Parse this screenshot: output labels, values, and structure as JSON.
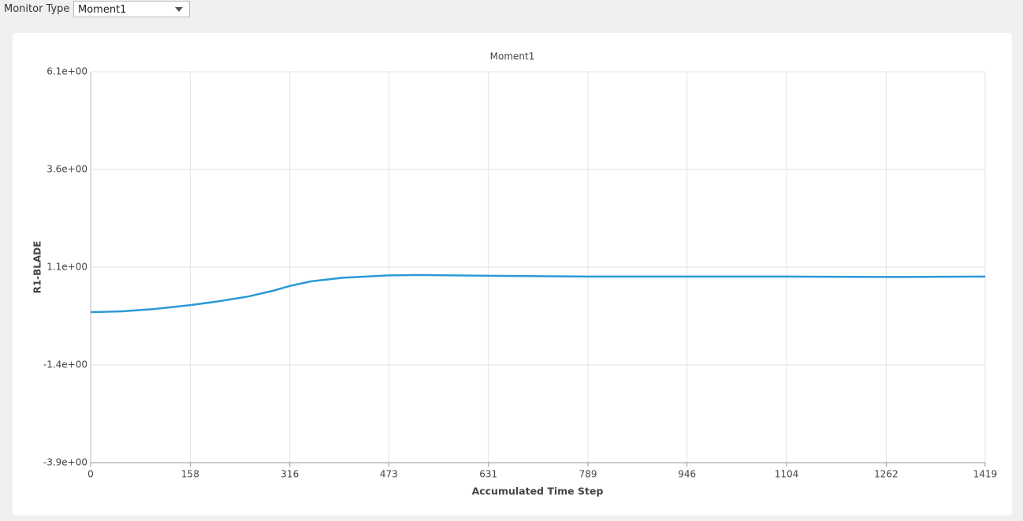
{
  "toolbar": {
    "label": "Monitor Type",
    "selected": "Moment1"
  },
  "chart_data": {
    "type": "line",
    "title": "Moment1",
    "x_label": "Accumulated Time Step",
    "y_label": "R1-BLADE",
    "x": [
      0,
      50,
      100,
      158,
      200,
      250,
      290,
      316,
      350,
      400,
      473,
      520,
      631,
      789,
      946,
      1104,
      1262,
      1419
    ],
    "series": [
      {
        "name": "R1-BLADE",
        "color": "#2b9ad6",
        "values": [
          -0.05,
          -0.03,
          0.03,
          0.13,
          0.22,
          0.35,
          0.5,
          0.62,
          0.74,
          0.83,
          0.89,
          0.9,
          0.88,
          0.86,
          0.86,
          0.86,
          0.85,
          0.86
        ]
      }
    ],
    "xlim": [
      0,
      1419
    ],
    "xticks": [
      0,
      158,
      316,
      473,
      631,
      789,
      946,
      1104,
      1262,
      1419
    ],
    "ylim": [
      -3.9,
      6.1
    ],
    "yticks": [
      {
        "value": -3.9,
        "label": "-3.9e+00"
      },
      {
        "value": -1.4,
        "label": "-1.4e+00"
      },
      {
        "value": 1.1,
        "label": "1.1e+00"
      },
      {
        "value": 3.6,
        "label": "3.6e+00"
      },
      {
        "value": 6.1,
        "label": "6.1e+00"
      }
    ],
    "grid": true
  }
}
